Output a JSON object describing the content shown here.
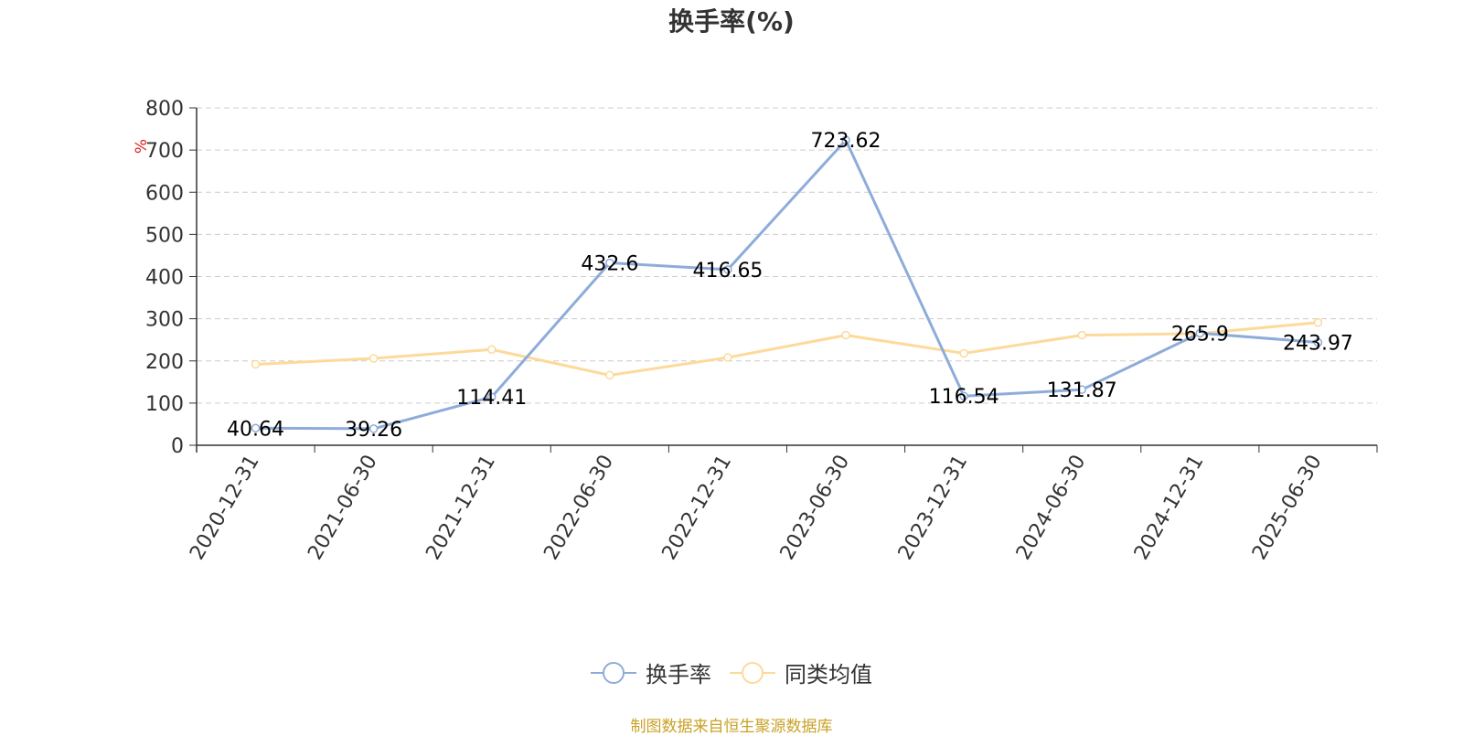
{
  "chart_data": {
    "type": "line",
    "title": "换手率(%)",
    "ylabel": "%",
    "xlabel": "",
    "categories": [
      "2020-12-31",
      "2021-06-30",
      "2021-12-31",
      "2022-06-30",
      "2022-12-31",
      "2023-06-30",
      "2023-12-31",
      "2024-06-30",
      "2024-12-31",
      "2025-06-30"
    ],
    "series": [
      {
        "name": "换手率",
        "color": "#8eacd9",
        "values": [
          40.64,
          39.26,
          114.41,
          432.6,
          416.65,
          723.62,
          116.54,
          131.87,
          265.9,
          243.97
        ],
        "labels": [
          "40.64",
          "39.26",
          "114.41",
          "432.6",
          "416.65",
          "723.62",
          "116.54",
          "131.87",
          "265.9",
          "243.97"
        ]
      },
      {
        "name": "同类均值",
        "color": "#fdd99a",
        "values": [
          192,
          206,
          227,
          166,
          208,
          261,
          218,
          261,
          265,
          291
        ]
      }
    ],
    "yticks": [
      "0",
      "100",
      "200",
      "300",
      "400",
      "500",
      "600",
      "700",
      "800"
    ],
    "ylim": [
      0,
      800
    ],
    "grid": true,
    "legend_position": "bottom"
  },
  "source_text": "制图数据来自恒生聚源数据库"
}
